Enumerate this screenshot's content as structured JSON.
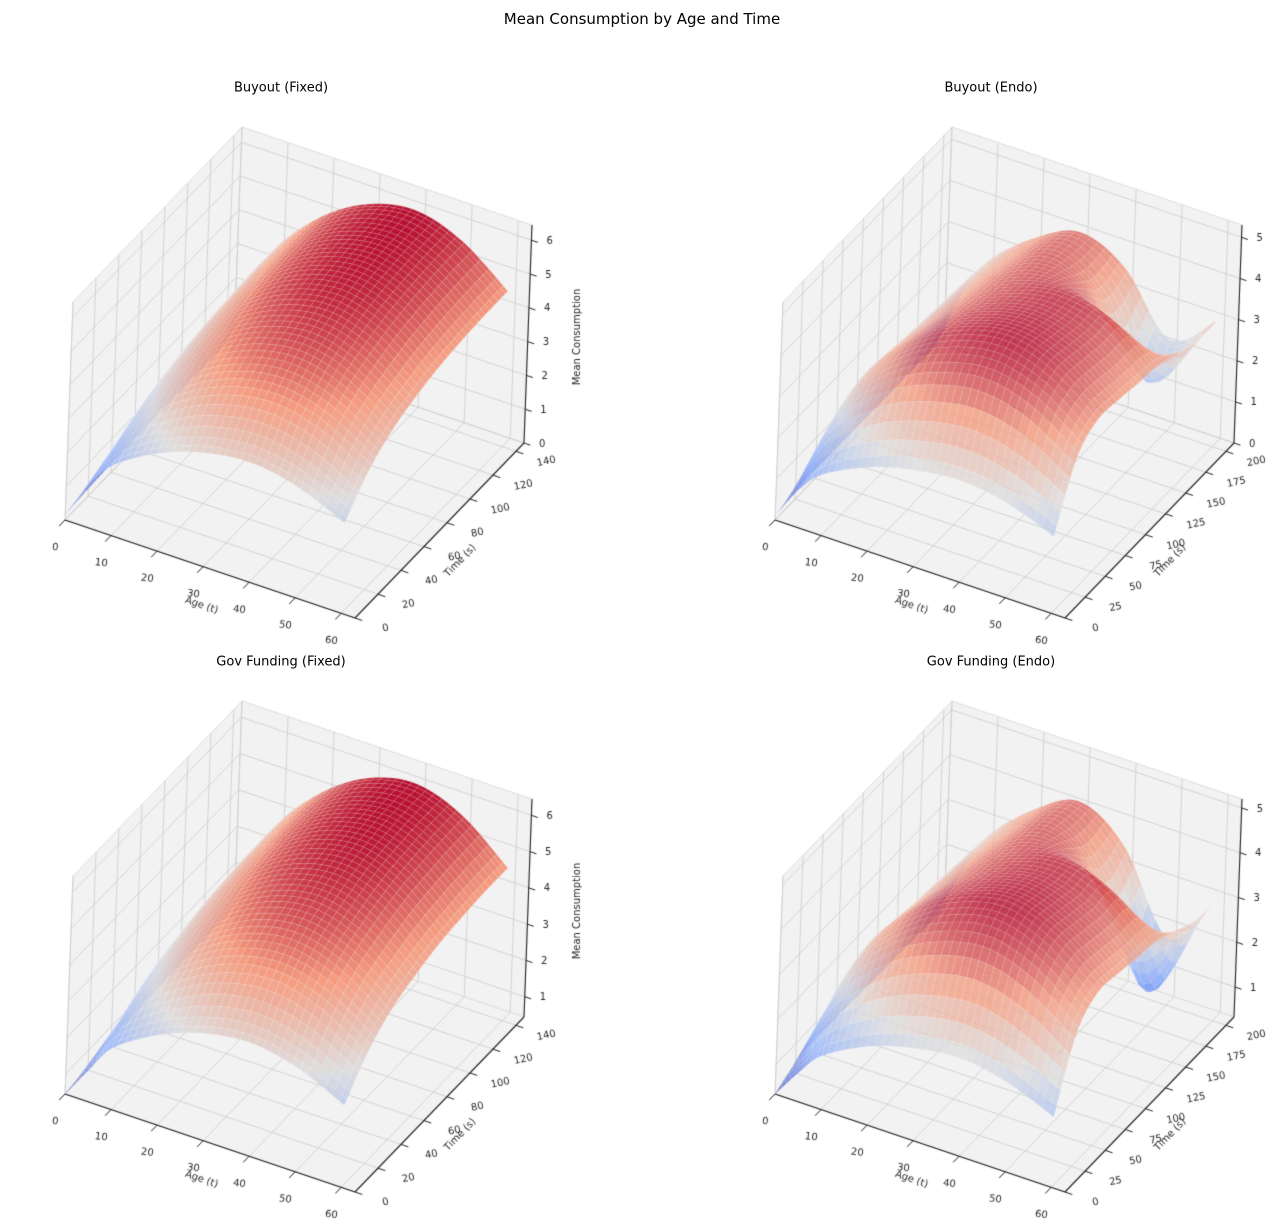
{
  "figure": {
    "title": "Mean Consumption by Age and Time"
  },
  "colors": {
    "background": "#ffffff",
    "pane_fill": "#f2f2f2",
    "pane_edge": "#dddddd",
    "grid_line": "#cccccc",
    "axis_line": "#222222",
    "tick_label": "#262626",
    "colormap_name": "coolwarm",
    "colormap_anchors": [
      "#3b4cc0",
      "#8db0fe",
      "#dddcdc",
      "#f4987a",
      "#b40426"
    ]
  },
  "chart_data": [
    {
      "type": "surface",
      "title": "Buyout (Fixed)",
      "x_label": "Age (t)",
      "y_label": "Time (s)",
      "z_label": "Mean Consumption",
      "xticks": [
        0,
        10,
        20,
        30,
        40,
        50,
        60
      ],
      "yticks": [
        0,
        20,
        40,
        60,
        80,
        100,
        120,
        140
      ],
      "zticks": [
        0,
        1,
        2,
        3,
        4,
        5,
        6
      ],
      "xlim": [
        0,
        63
      ],
      "ylim": [
        0,
        147
      ],
      "zlim": [
        0,
        6.45
      ],
      "alpha": 0.95,
      "x": [
        0,
        5,
        10,
        20,
        30,
        40,
        50,
        60
      ],
      "y": [
        0,
        20,
        40,
        60,
        80,
        100,
        120,
        140
      ],
      "values": [
        [
          0.17,
          0.23,
          0.26,
          0.28,
          0.29,
          0.3,
          0.3,
          0.3
        ],
        [
          1.28,
          1.67,
          1.91,
          2.05,
          2.13,
          2.18,
          2.2,
          2.2
        ],
        [
          2.09,
          2.74,
          3.13,
          3.35,
          3.49,
          3.56,
          3.6,
          3.6
        ],
        [
          2.9,
          3.8,
          4.35,
          4.65,
          4.85,
          4.95,
          5.0,
          5.0
        ],
        [
          3.36,
          4.41,
          5.05,
          5.39,
          5.63,
          5.74,
          5.8,
          5.8
        ],
        [
          3.51,
          4.6,
          5.26,
          5.63,
          5.87,
          5.99,
          6.05,
          6.05
        ],
        [
          3.25,
          4.26,
          4.87,
          5.21,
          5.43,
          5.54,
          5.6,
          5.6
        ],
        [
          2.67,
          3.5,
          4.0,
          4.28,
          4.46,
          4.55,
          4.6,
          4.6
        ]
      ]
    },
    {
      "type": "surface",
      "title": "Buyout (Endo)",
      "x_label": "Age (t)",
      "y_label": "Time (s)",
      "z_label": "",
      "xticks": [
        0,
        10,
        20,
        30,
        40,
        50,
        60
      ],
      "yticks": [
        0,
        25,
        50,
        75,
        100,
        125,
        150,
        175,
        200
      ],
      "zticks": [
        0,
        1,
        2,
        3,
        4,
        5
      ],
      "xlim": [
        0,
        63
      ],
      "ylim": [
        0,
        210
      ],
      "zlim": [
        0,
        5.3
      ],
      "alpha": 0.78,
      "x": [
        0,
        5,
        10,
        20,
        30,
        40,
        50,
        60
      ],
      "y": [
        0,
        25,
        50,
        75,
        100,
        125,
        150,
        175,
        200
      ],
      "values": [
        [
          0.11,
          0.19,
          0.22,
          0.21,
          0.21,
          0.2,
          0.2,
          0.2,
          0.19
        ],
        [
          0.94,
          1.62,
          1.84,
          1.82,
          1.77,
          1.73,
          1.7,
          1.67,
          1.63
        ],
        [
          1.49,
          2.57,
          2.92,
          2.89,
          2.81,
          2.75,
          2.7,
          2.65,
          2.59
        ],
        [
          2.04,
          3.52,
          4.0,
          3.96,
          3.85,
          3.77,
          3.7,
          3.63,
          3.55
        ],
        [
          2.34,
          4.04,
          4.59,
          4.55,
          4.42,
          4.34,
          4.25,
          4.17,
          4.08
        ],
        [
          2.45,
          4.23,
          4.81,
          4.76,
          4.63,
          4.54,
          3.99,
          3.42,
          3.58
        ],
        [
          2.28,
          3.94,
          4.48,
          4.44,
          4.32,
          4.23,
          2.98,
          1.68,
          2.22
        ],
        [
          1.87,
          3.23,
          3.67,
          3.64,
          3.54,
          3.47,
          3.27,
          3.06,
          3.06
        ]
      ]
    },
    {
      "type": "surface",
      "title": "Gov Funding (Fixed)",
      "x_label": "Age (t)",
      "y_label": "Time (s)",
      "z_label": "Mean Consumption",
      "xticks": [
        0,
        10,
        20,
        30,
        40,
        50,
        60
      ],
      "yticks": [
        0,
        20,
        40,
        60,
        80,
        100,
        120,
        140
      ],
      "zticks": [
        1,
        2,
        3,
        4,
        5,
        6
      ],
      "xlim": [
        0,
        63
      ],
      "ylim": [
        0,
        147
      ],
      "zlim": [
        0.44,
        6.45
      ],
      "alpha": 0.95,
      "x": [
        0,
        5,
        10,
        20,
        30,
        40,
        50,
        60
      ],
      "y": [
        0,
        20,
        40,
        60,
        80,
        100,
        120,
        140
      ],
      "values": [
        [
          0.44,
          0.57,
          0.65,
          0.7,
          0.73,
          0.74,
          0.75,
          0.75
        ],
        [
          1.33,
          1.75,
          2.0,
          2.14,
          2.23,
          2.28,
          2.3,
          2.3
        ],
        [
          2.15,
          2.81,
          3.22,
          3.44,
          3.59,
          3.66,
          3.7,
          3.7
        ],
        [
          2.93,
          3.84,
          4.39,
          4.7,
          4.9,
          5.0,
          5.05,
          5.05
        ],
        [
          3.39,
          4.45,
          5.09,
          5.44,
          5.67,
          5.79,
          5.85,
          5.85
        ],
        [
          3.54,
          4.64,
          5.31,
          5.67,
          5.92,
          6.04,
          6.1,
          6.1
        ],
        [
          3.28,
          4.29,
          4.92,
          5.25,
          5.48,
          5.59,
          5.65,
          5.65
        ],
        [
          2.7,
          3.53,
          4.05,
          4.32,
          4.51,
          4.6,
          4.65,
          4.65
        ]
      ]
    },
    {
      "type": "surface",
      "title": "Gov Funding (Endo)",
      "x_label": "Age (t)",
      "y_label": "Time (s)",
      "z_label": "",
      "xticks": [
        0,
        10,
        20,
        30,
        40,
        50,
        60
      ],
      "yticks": [
        0,
        25,
        50,
        75,
        100,
        125,
        150,
        175,
        200
      ],
      "zticks": [
        1,
        2,
        3,
        4,
        5
      ],
      "xlim": [
        0,
        63
      ],
      "ylim": [
        0,
        210
      ],
      "zlim": [
        0.33,
        5.2
      ],
      "alpha": 0.78,
      "x": [
        0,
        5,
        10,
        20,
        30,
        40,
        50,
        60
      ],
      "y": [
        0,
        25,
        50,
        75,
        100,
        125,
        150,
        175,
        200
      ],
      "values": [
        [
          0.33,
          0.57,
          0.65,
          0.64,
          0.62,
          0.61,
          0.6,
          0.59,
          0.58
        ],
        [
          0.99,
          1.71,
          1.94,
          1.93,
          1.87,
          1.84,
          1.8,
          1.76,
          1.73
        ],
        [
          1.54,
          2.66,
          3.02,
          3.0,
          2.91,
          2.86,
          2.8,
          2.74,
          2.69
        ],
        [
          2.09,
          3.61,
          4.1,
          4.07,
          3.95,
          3.88,
          3.8,
          3.72,
          3.65
        ],
        [
          2.39,
          4.13,
          4.7,
          4.65,
          4.52,
          4.44,
          4.35,
          4.26,
          4.18
        ],
        [
          2.5,
          4.32,
          4.91,
          4.87,
          4.73,
          4.64,
          3.97,
          3.27,
          3.5
        ],
        [
          2.31,
          3.99,
          4.54,
          4.49,
          4.37,
          4.28,
          2.71,
          1.08,
          1.8
        ],
        [
          1.9,
          3.28,
          3.73,
          3.69,
          3.59,
          3.52,
          3.28,
          3.04,
          3.06
        ]
      ]
    }
  ]
}
